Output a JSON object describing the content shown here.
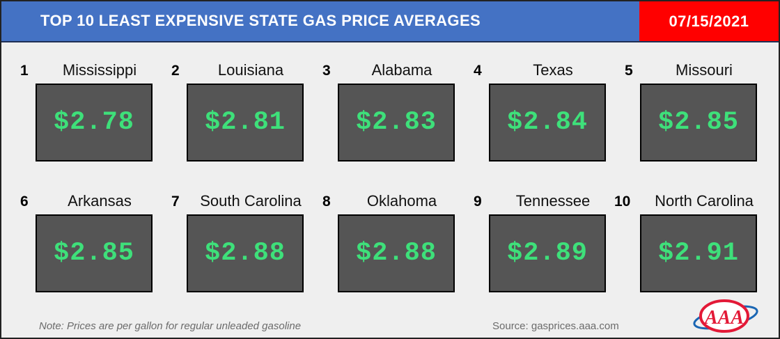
{
  "header": {
    "title": "TOP 10 LEAST EXPENSIVE STATE GAS PRICE AVERAGES",
    "date": "07/15/2021"
  },
  "states": [
    {
      "rank": "1",
      "name": "Mississippi",
      "price": "$2.78"
    },
    {
      "rank": "2",
      "name": "Louisiana",
      "price": "$2.81"
    },
    {
      "rank": "3",
      "name": "Alabama",
      "price": "$2.83"
    },
    {
      "rank": "4",
      "name": "Texas",
      "price": "$2.84"
    },
    {
      "rank": "5",
      "name": "Missouri",
      "price": "$2.85"
    },
    {
      "rank": "6",
      "name": "Arkansas",
      "price": "$2.85"
    },
    {
      "rank": "7",
      "name": "South Carolina",
      "price": "$2.88"
    },
    {
      "rank": "8",
      "name": "Oklahoma",
      "price": "$2.88"
    },
    {
      "rank": "9",
      "name": "Tennessee",
      "price": "$2.89"
    },
    {
      "rank": "10",
      "name": "North Carolina",
      "price": "$2.91"
    }
  ],
  "footer": {
    "note": "Note: Prices are per gallon for regular unleaded gasoline",
    "source": "Source: gasprices.aaa.com",
    "logo_text": "AAA"
  },
  "colors": {
    "banner": "#4472c4",
    "date_badge": "#ff0000",
    "price_box": "#555555",
    "price_text": "#3ee07a",
    "logo_red": "#e31937",
    "logo_blue": "#1a66b3"
  }
}
